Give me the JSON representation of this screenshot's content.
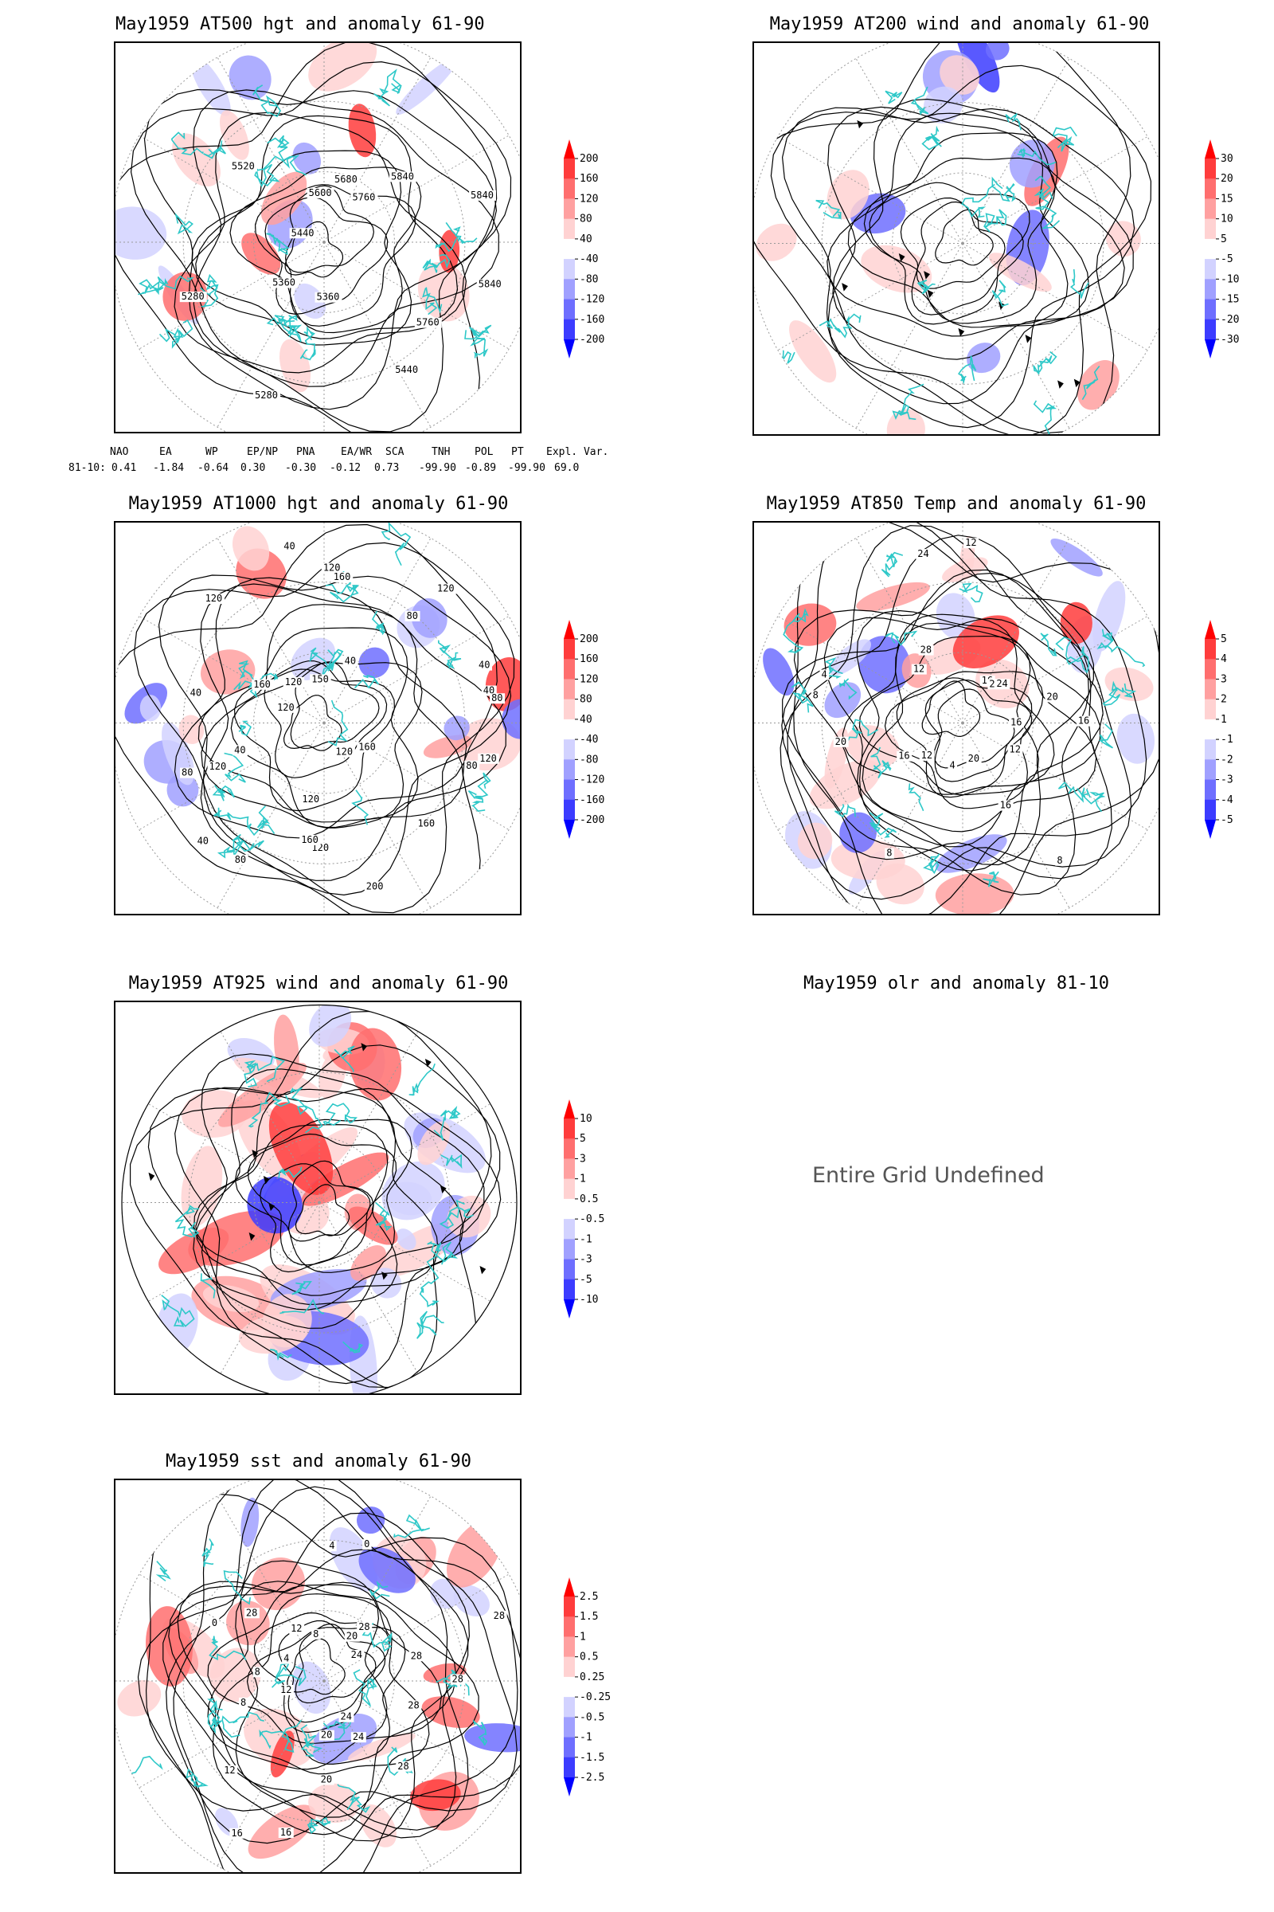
{
  "panels": {
    "p500": {
      "title": "May1959 AT500 hgt and anomaly 61-90",
      "contour_labels": [
        "5840",
        "5760",
        "5440",
        "5360",
        "5280",
        "5360",
        "5280",
        "5440",
        "5520",
        "5600",
        "5680",
        "5760",
        "5840",
        "5840"
      ]
    },
    "p200": {
      "title": "May1959 AT200 wind and anomaly 61-90"
    },
    "p1000": {
      "title": "May1959 AT1000 hgt and anomaly 61-90",
      "contour_labels": [
        "80",
        "120",
        "160",
        "160",
        "120",
        "200",
        "120",
        "160",
        "120",
        "80",
        "40",
        "120",
        "80",
        "40",
        "120",
        "40",
        "160",
        "120",
        "120",
        "40",
        "150",
        "120",
        "160",
        "40",
        "80",
        "120",
        "40",
        "40",
        "80"
      ]
    },
    "p850": {
      "title": "May1959 AT850 Temp and anomaly 61-90",
      "contour_labels": [
        "16",
        "12",
        "8",
        "16",
        "20",
        "4",
        "8",
        "12",
        "16",
        "20",
        "8",
        "4",
        "12",
        "28",
        "24",
        "12",
        "16",
        "28",
        "24",
        "20",
        "16"
      ]
    },
    "p925": {
      "title": "May1959 AT925 wind and anomaly 61-90"
    },
    "polr": {
      "title": "May1959 olr and anomaly 81-10",
      "message": "Entire Grid Undefined"
    },
    "psst": {
      "title": "May1959 sst and anomaly 61-90",
      "contour_labels": [
        "28",
        "28",
        "28",
        "24",
        "24",
        "20",
        "20",
        "16",
        "16",
        "12",
        "12",
        "8",
        "8",
        "4",
        "0",
        "28",
        "12",
        "8",
        "4",
        "0",
        "20",
        "28",
        "24",
        "28",
        "28"
      ]
    }
  },
  "colorbars": {
    "hgt": [
      "200",
      "160",
      "120",
      "80",
      "40",
      "-40",
      "-80",
      "-120",
      "-160",
      "-200"
    ],
    "wind200": [
      "30",
      "20",
      "15",
      "10",
      "5",
      "-5",
      "-10",
      "-15",
      "-20",
      "-30"
    ],
    "temp": [
      "5",
      "4",
      "3",
      "2",
      "1",
      "-1",
      "-2",
      "-3",
      "-4",
      "-5"
    ],
    "wind925": [
      "10",
      "5",
      "3",
      "1",
      "0.5",
      "-0.5",
      "-1",
      "-3",
      "-5",
      "-10"
    ],
    "sst": [
      "2.5",
      "1.5",
      "1",
      "0.5",
      "0.25",
      "-0.25",
      "-0.5",
      "-1",
      "-1.5",
      "-2.5"
    ]
  },
  "teleconnection": {
    "headers": [
      "NAO",
      "EA",
      "WP",
      "EP/NP",
      "PNA",
      "EA/WR",
      "SCA",
      "TNH",
      "POL",
      "PT",
      "Expl. Var."
    ],
    "row_label": "81-10:",
    "values": [
      "0.41",
      "-1.84",
      "-0.64",
      "0.30",
      "-0.30",
      "-0.12",
      "0.73",
      "-99.90",
      "-0.89",
      "-99.90",
      "69.0"
    ]
  },
  "colors": {
    "reds": [
      "#ff0000",
      "#ff3c3c",
      "#ff6e6e",
      "#ffa0a0",
      "#ffd2d2"
    ],
    "blues": [
      "#d2d2ff",
      "#a0a0ff",
      "#6e6eff",
      "#3c3cff",
      "#0000ff"
    ],
    "coast": "#2ec8c8"
  }
}
